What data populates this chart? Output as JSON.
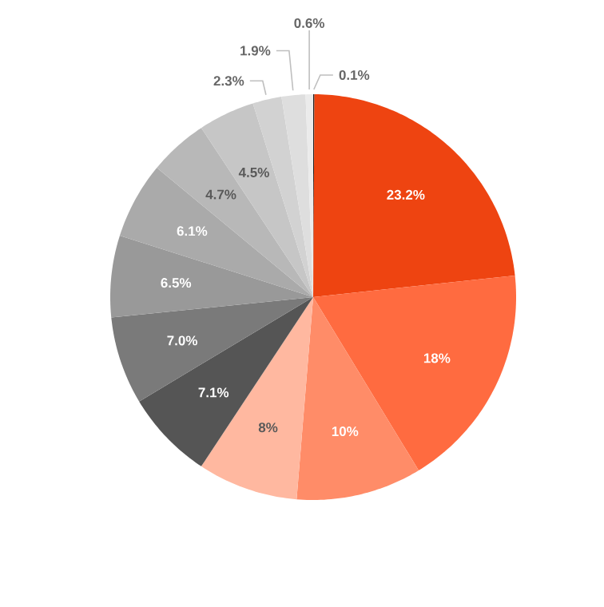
{
  "chart_data": {
    "type": "pie",
    "categories": [
      null,
      null,
      null,
      null,
      null,
      null,
      null,
      null,
      null,
      null,
      null,
      null,
      null,
      null
    ],
    "values": [
      0.1,
      23.2,
      18,
      10,
      8,
      7.1,
      7.0,
      6.5,
      6.1,
      4.7,
      4.5,
      2.3,
      1.9,
      0.6
    ],
    "colors": [
      "#222222",
      "#ee4411",
      "#ff6b40",
      "#ff8c68",
      "#ffb8a0",
      "#555555",
      "#7a7a7a",
      "#999999",
      "#aaaaaa",
      "#b8b8b8",
      "#c6c6c6",
      "#d2d2d2",
      "#dedede",
      "#ebebeb"
    ],
    "value_labels": [
      "0.1%",
      "23.2%",
      "18%",
      "10%",
      "8%",
      "7.1%",
      "7.0%",
      "6.5%",
      "6.1%",
      "4.7%",
      "4.5%",
      "2.3%",
      "1.9%",
      "0.6%"
    ]
  }
}
